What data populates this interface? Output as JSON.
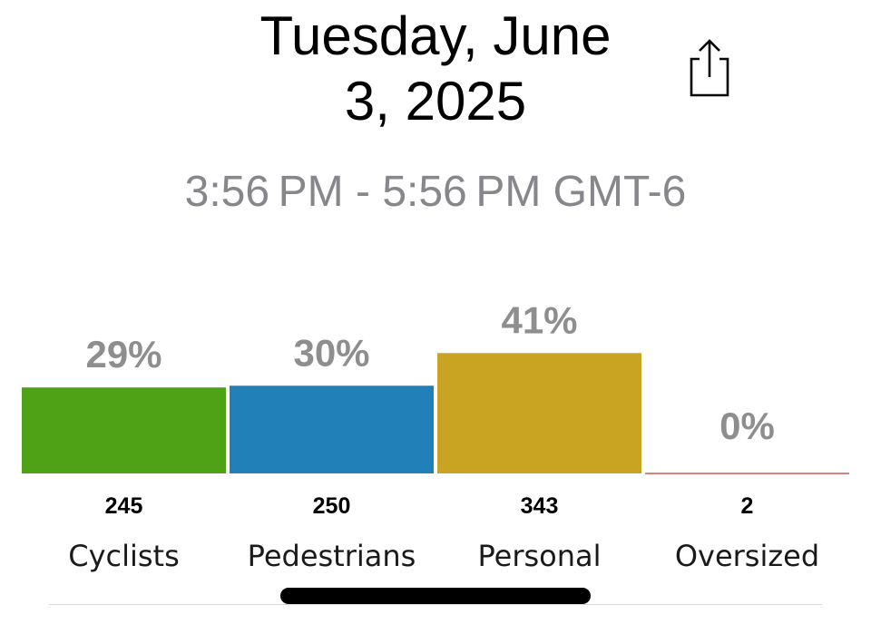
{
  "header": {
    "title_line1": "Tuesday, June",
    "title_line2": "3, 2025",
    "time_range": "3:56 PM - 5:56 PM GMT-6"
  },
  "icons": {
    "share": "share-icon"
  },
  "chart_data": {
    "type": "bar",
    "categories": [
      "Cyclists",
      "Pedestrians",
      "Personal",
      "Oversized"
    ],
    "values": [
      245,
      250,
      343,
      2
    ],
    "percent_labels": [
      "29%",
      "30%",
      "41%",
      "0%"
    ],
    "colors": [
      "#4fa215",
      "#2280b8",
      "#c8a422",
      "#c0392b"
    ],
    "title": "",
    "xlabel": "",
    "ylabel": ""
  }
}
